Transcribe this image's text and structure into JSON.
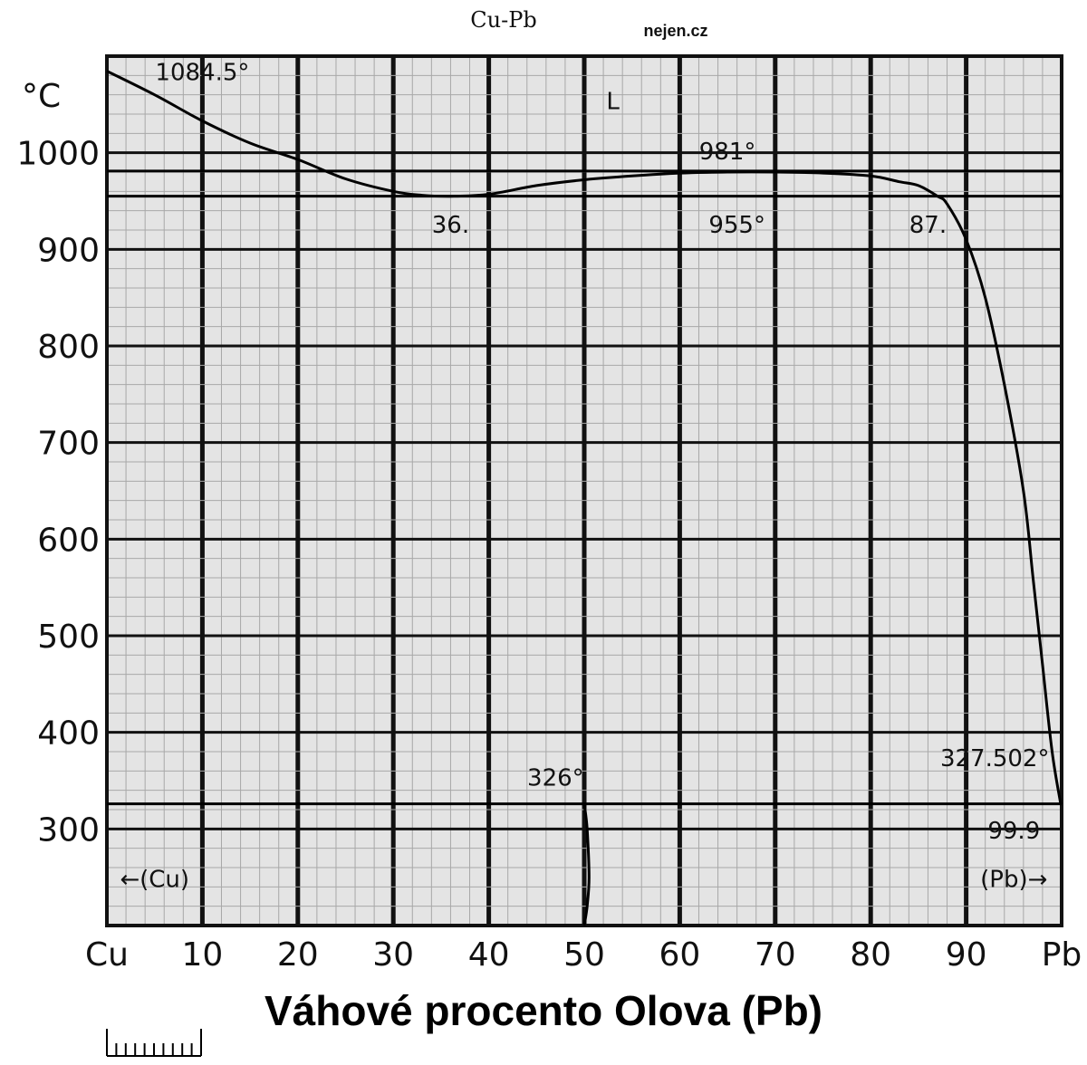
{
  "header": {
    "system": "Cu-Pb",
    "watermark": "nejen.cz"
  },
  "chart_data": {
    "type": "line",
    "title": "Cu-Pb",
    "xlabel": "Váhové procento Olova (Pb)",
    "ylabel": "°C",
    "xlim": [
      0,
      100
    ],
    "ylim": [
      200,
      1100
    ],
    "x_tick_labels": [
      "Cu",
      "10",
      "20",
      "30",
      "40",
      "50",
      "60",
      "70",
      "80",
      "90",
      "Pb"
    ],
    "y_tick_labels": [
      "300",
      "400",
      "500",
      "600",
      "700",
      "800",
      "900",
      "1000"
    ],
    "y_ticks": [
      300,
      400,
      500,
      600,
      700,
      800,
      900,
      1000
    ],
    "grid": true,
    "series": [
      {
        "x": [
          0,
          5,
          10,
          15,
          20,
          25,
          30,
          33,
          36,
          40,
          45,
          50,
          55,
          60,
          65,
          70,
          75,
          80,
          83,
          85,
          87,
          88,
          90,
          92,
          94,
          96,
          97,
          98,
          99,
          99.9
        ],
        "y": [
          1084.5,
          1060,
          1033,
          1010,
          993,
          973,
          960,
          956,
          955,
          957,
          966,
          972,
          976,
          979,
          980,
          980,
          979,
          976,
          970,
          966,
          955,
          947,
          910,
          850,
          760,
          650,
          560,
          470,
          380,
          326
        ]
      },
      {
        "x": [
          50,
          50.3,
          50.5,
          50.3,
          50
        ],
        "y": [
          326,
          300,
          250,
          220,
          200
        ]
      }
    ],
    "reference_lines": [
      {
        "y": 981
      },
      {
        "y": 955
      },
      {
        "y": 326
      }
    ],
    "annotations": [
      {
        "text": "1084.5°",
        "x": 10,
        "y": 1075
      },
      {
        "text": "L",
        "x": 53,
        "y": 1045
      },
      {
        "text": "981°",
        "x": 65,
        "y": 993
      },
      {
        "text": "36.",
        "x": 36,
        "y": 917
      },
      {
        "text": "955°",
        "x": 66,
        "y": 917
      },
      {
        "text": "87.",
        "x": 86,
        "y": 917
      },
      {
        "text": "326°",
        "x": 47,
        "y": 345
      },
      {
        "text": "327.502°",
        "x": 93,
        "y": 365
      },
      {
        "text": "99.9",
        "x": 95,
        "y": 290
      },
      {
        "text": "←(Cu)",
        "x": 5,
        "y": 240
      },
      {
        "text": "(Pb)→",
        "x": 95,
        "y": 240
      }
    ],
    "scale_bar": {
      "divisions": 10
    }
  }
}
